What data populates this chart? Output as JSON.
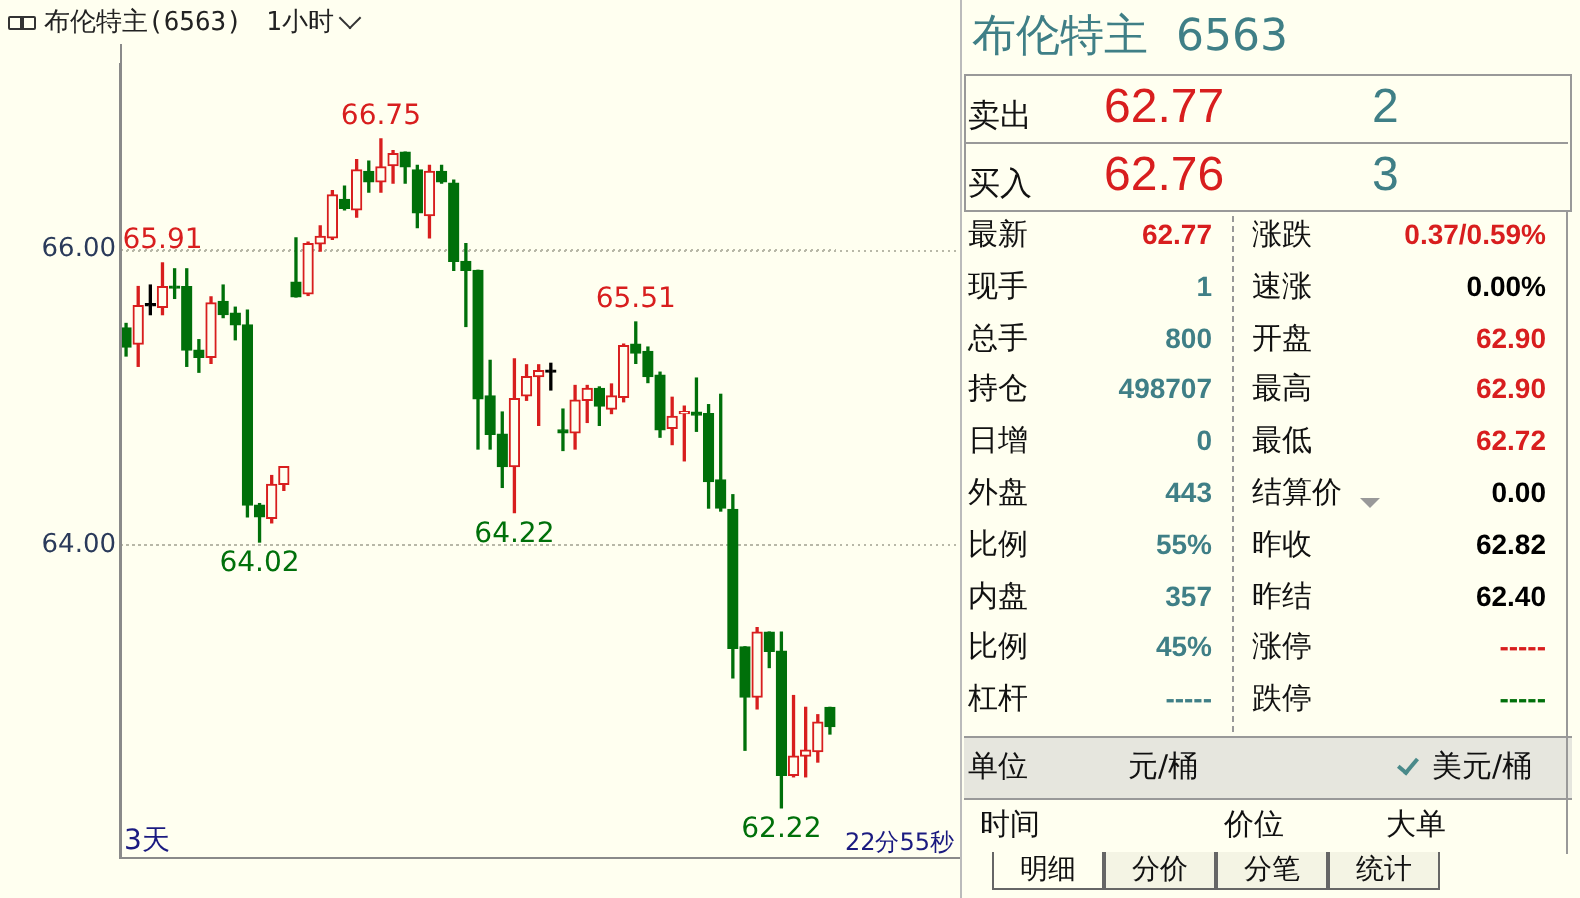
{
  "chart_data": [
    {
      "type": "candlestick",
      "title": "布伦特主(6563)",
      "subtitle": "1小时",
      "categories": [
        null,
        null,
        null,
        null,
        null,
        null,
        null,
        null,
        null,
        null,
        null,
        null,
        null,
        null,
        null,
        null,
        null,
        null,
        null,
        null,
        null,
        null,
        null,
        null,
        null,
        null,
        null,
        null,
        null,
        null,
        null,
        null,
        null,
        null,
        null,
        null,
        null,
        null,
        null,
        null,
        null,
        null,
        null,
        null,
        null,
        null,
        null,
        null,
        null,
        null,
        null,
        null,
        null,
        null,
        null,
        null,
        null,
        null,
        null
      ],
      "ohlc": [
        [
          65.47,
          65.5,
          65.28,
          65.34
        ],
        [
          65.36,
          65.75,
          65.21,
          65.62
        ],
        [
          65.62,
          65.76,
          65.56,
          65.62
        ],
        [
          65.61,
          65.91,
          65.56,
          65.75
        ],
        [
          65.75,
          65.87,
          65.67,
          65.74
        ],
        [
          65.75,
          65.87,
          65.21,
          65.32
        ],
        [
          65.32,
          65.39,
          65.17,
          65.27
        ],
        [
          65.27,
          65.68,
          65.23,
          65.64
        ],
        [
          65.65,
          65.76,
          65.54,
          65.56
        ],
        [
          65.57,
          65.61,
          65.39,
          65.49
        ],
        [
          65.49,
          65.59,
          64.19,
          64.27
        ],
        [
          64.27,
          64.28,
          64.02,
          64.19
        ],
        [
          64.18,
          64.47,
          64.15,
          64.41
        ],
        [
          64.41,
          64.53,
          64.37,
          64.53
        ],
        [
          65.78,
          66.08,
          65.68,
          65.68
        ],
        [
          65.7,
          66.05,
          65.69,
          66.04
        ],
        [
          66.04,
          66.16,
          65.99,
          66.09
        ],
        [
          66.08,
          66.4,
          66.07,
          66.37
        ],
        [
          66.34,
          66.43,
          66.27,
          66.28
        ],
        [
          66.27,
          66.61,
          66.22,
          66.54
        ],
        [
          66.53,
          66.6,
          66.39,
          66.46
        ],
        [
          66.46,
          66.75,
          66.39,
          66.56
        ],
        [
          66.57,
          66.67,
          66.45,
          66.65
        ],
        [
          66.66,
          66.66,
          66.45,
          66.56
        ],
        [
          66.54,
          66.57,
          66.15,
          66.25
        ],
        [
          66.23,
          66.57,
          66.08,
          66.53
        ],
        [
          66.53,
          66.57,
          66.45,
          66.46
        ],
        [
          66.45,
          66.47,
          65.86,
          65.92
        ],
        [
          65.92,
          66.04,
          65.48,
          65.86
        ],
        [
          65.86,
          65.86,
          64.65,
          64.99
        ],
        [
          65.01,
          65.25,
          64.65,
          64.75
        ],
        [
          64.75,
          64.9,
          64.39,
          64.53
        ],
        [
          64.53,
          65.26,
          64.22,
          64.99
        ],
        [
          65.01,
          65.22,
          64.98,
          65.14
        ],
        [
          65.14,
          65.22,
          64.81,
          65.18
        ],
        [
          65.17,
          65.23,
          65.05,
          65.17
        ],
        [
          64.78,
          64.92,
          64.64,
          64.76
        ],
        [
          64.76,
          65.08,
          64.65,
          64.98
        ],
        [
          64.98,
          65.08,
          64.83,
          65.06
        ],
        [
          65.06,
          65.07,
          64.81,
          64.94
        ],
        [
          64.92,
          65.09,
          64.89,
          65.01
        ],
        [
          65.0,
          65.36,
          64.97,
          65.35
        ],
        [
          65.36,
          65.51,
          65.23,
          65.3
        ],
        [
          65.31,
          65.34,
          65.1,
          65.14
        ],
        [
          65.15,
          65.17,
          64.73,
          64.78
        ],
        [
          64.79,
          65.0,
          64.68,
          64.87
        ],
        [
          64.89,
          64.94,
          64.57,
          64.9
        ],
        [
          64.9,
          65.13,
          64.77,
          64.88
        ],
        [
          64.89,
          64.95,
          64.25,
          64.43
        ],
        [
          64.44,
          65.02,
          64.23,
          64.25
        ],
        [
          64.24,
          64.34,
          63.1,
          63.3
        ],
        [
          63.31,
          63.31,
          62.61,
          62.97
        ],
        [
          62.97,
          63.44,
          62.89,
          63.41
        ],
        [
          63.41,
          63.41,
          63.17,
          63.28
        ],
        [
          63.28,
          63.41,
          62.22,
          62.44
        ],
        [
          62.44,
          62.98,
          62.43,
          62.57
        ],
        [
          62.57,
          62.9,
          62.43,
          62.61
        ],
        [
          62.6,
          62.85,
          62.53,
          62.8
        ],
        [
          62.9,
          62.9,
          62.72,
          62.77
        ]
      ],
      "ylim": [
        61.88,
        67.26
      ],
      "yticks": [
        {
          "value": 64,
          "label": "64.00"
        },
        {
          "value": 66,
          "label": "66.00"
        }
      ],
      "grid": "y",
      "tick_labels": "y",
      "annotations": [
        {
          "text": "65.91",
          "y": 65.91
        },
        {
          "text": "66.75",
          "y": 66.75
        },
        {
          "text": "65.51",
          "y": 65.51
        },
        {
          "text": "64.02",
          "y": 64.02
        },
        {
          "text": "64.22",
          "y": 64.22
        },
        {
          "text": "62.22",
          "y": 62.22
        },
        "3天",
        "22分55秒"
      ]
    },
    {
      "type": "other",
      "title": "布伦特主  6563",
      "annotations": [
        "卖出",
        "62.77",
        "2",
        "买入",
        "62.76",
        "3",
        "最新",
        "62.77",
        "涨跌",
        "0.37/0.59%",
        "现手",
        "1",
        "速涨",
        "0.00%",
        "总手",
        "800",
        "开盘",
        "62.90",
        "持仓",
        "498707",
        "最高",
        "62.90",
        "日增",
        "0",
        "最低",
        "62.72",
        "外盘",
        "443",
        "结算价",
        "0.00",
        "比例",
        "55%",
        "昨收",
        "62.82",
        "内盘",
        "357",
        "昨结",
        "62.40",
        "比例",
        "45%",
        "涨停",
        "-----",
        "杠杆",
        "-----",
        "跌停",
        "-----",
        "单位",
        "元/桶",
        "美元/桶",
        "时间",
        "价位",
        "大单",
        "明细",
        "分价",
        "分笔",
        "统计"
      ]
    }
  ]
}
